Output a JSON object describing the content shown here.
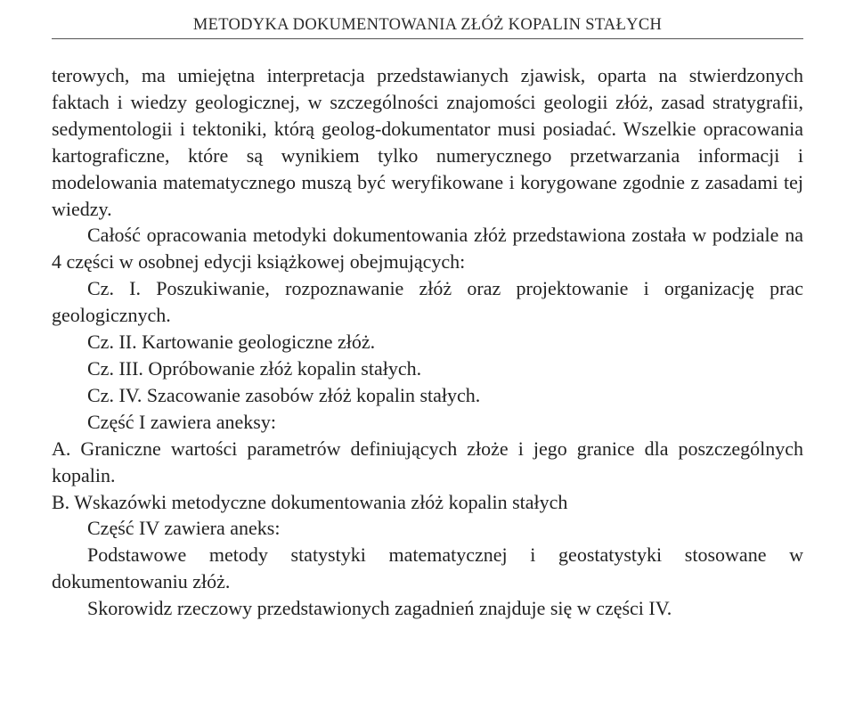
{
  "running_head": "METODYKA DOKUMENTOWANIA ZŁÓŻ KOPALIN STAŁYCH",
  "p1": "terowych, ma umiejętna interpretacja przedstawianych zjawisk, oparta na stwierdzonych faktach i wiedzy geologicznej, w szczególności znajomości geologii złóż, zasad stratygrafii, sedymentologii i tektoniki, którą geolog-dokumentator musi posiadać. Wszelkie opracowania kartograficzne, które są wynikiem tylko numerycznego przetwarzania informacji i modelowania matematycznego muszą być weryfikowane i korygowane zgodnie z zasadami tej wiedzy.",
  "p2": "Całość opracowania metodyki dokumentowania złóż przedstawiona została w podziale na 4 części w osobnej edycji książkowej obejmujących:",
  "p3": "Cz. I. Poszukiwanie, rozpoznawanie złóż oraz projektowanie i organizację prac geologicznych.",
  "p4": "Cz. II. Kartowanie geologiczne złóż.",
  "p5": "Cz. III. Opróbowanie złóż kopalin stałych.",
  "p6": "Cz. IV. Szacowanie zasobów złóż kopalin stałych.",
  "p7": "Część I zawiera aneksy:",
  "p8": "A. Graniczne wartości parametrów definiujących złoże i jego granice dla poszczególnych kopalin.",
  "p9": "B. Wskazówki metodyczne dokumentowania złóż kopalin stałych",
  "p10": "Część IV zawiera aneks:",
  "p11": "Podstawowe metody statystyki matematycznej i geostatystyki stosowane w dokumentowaniu złóż.",
  "p12": "Skorowidz rzeczowy przedstawionych zagadnień znajduje się w części IV."
}
